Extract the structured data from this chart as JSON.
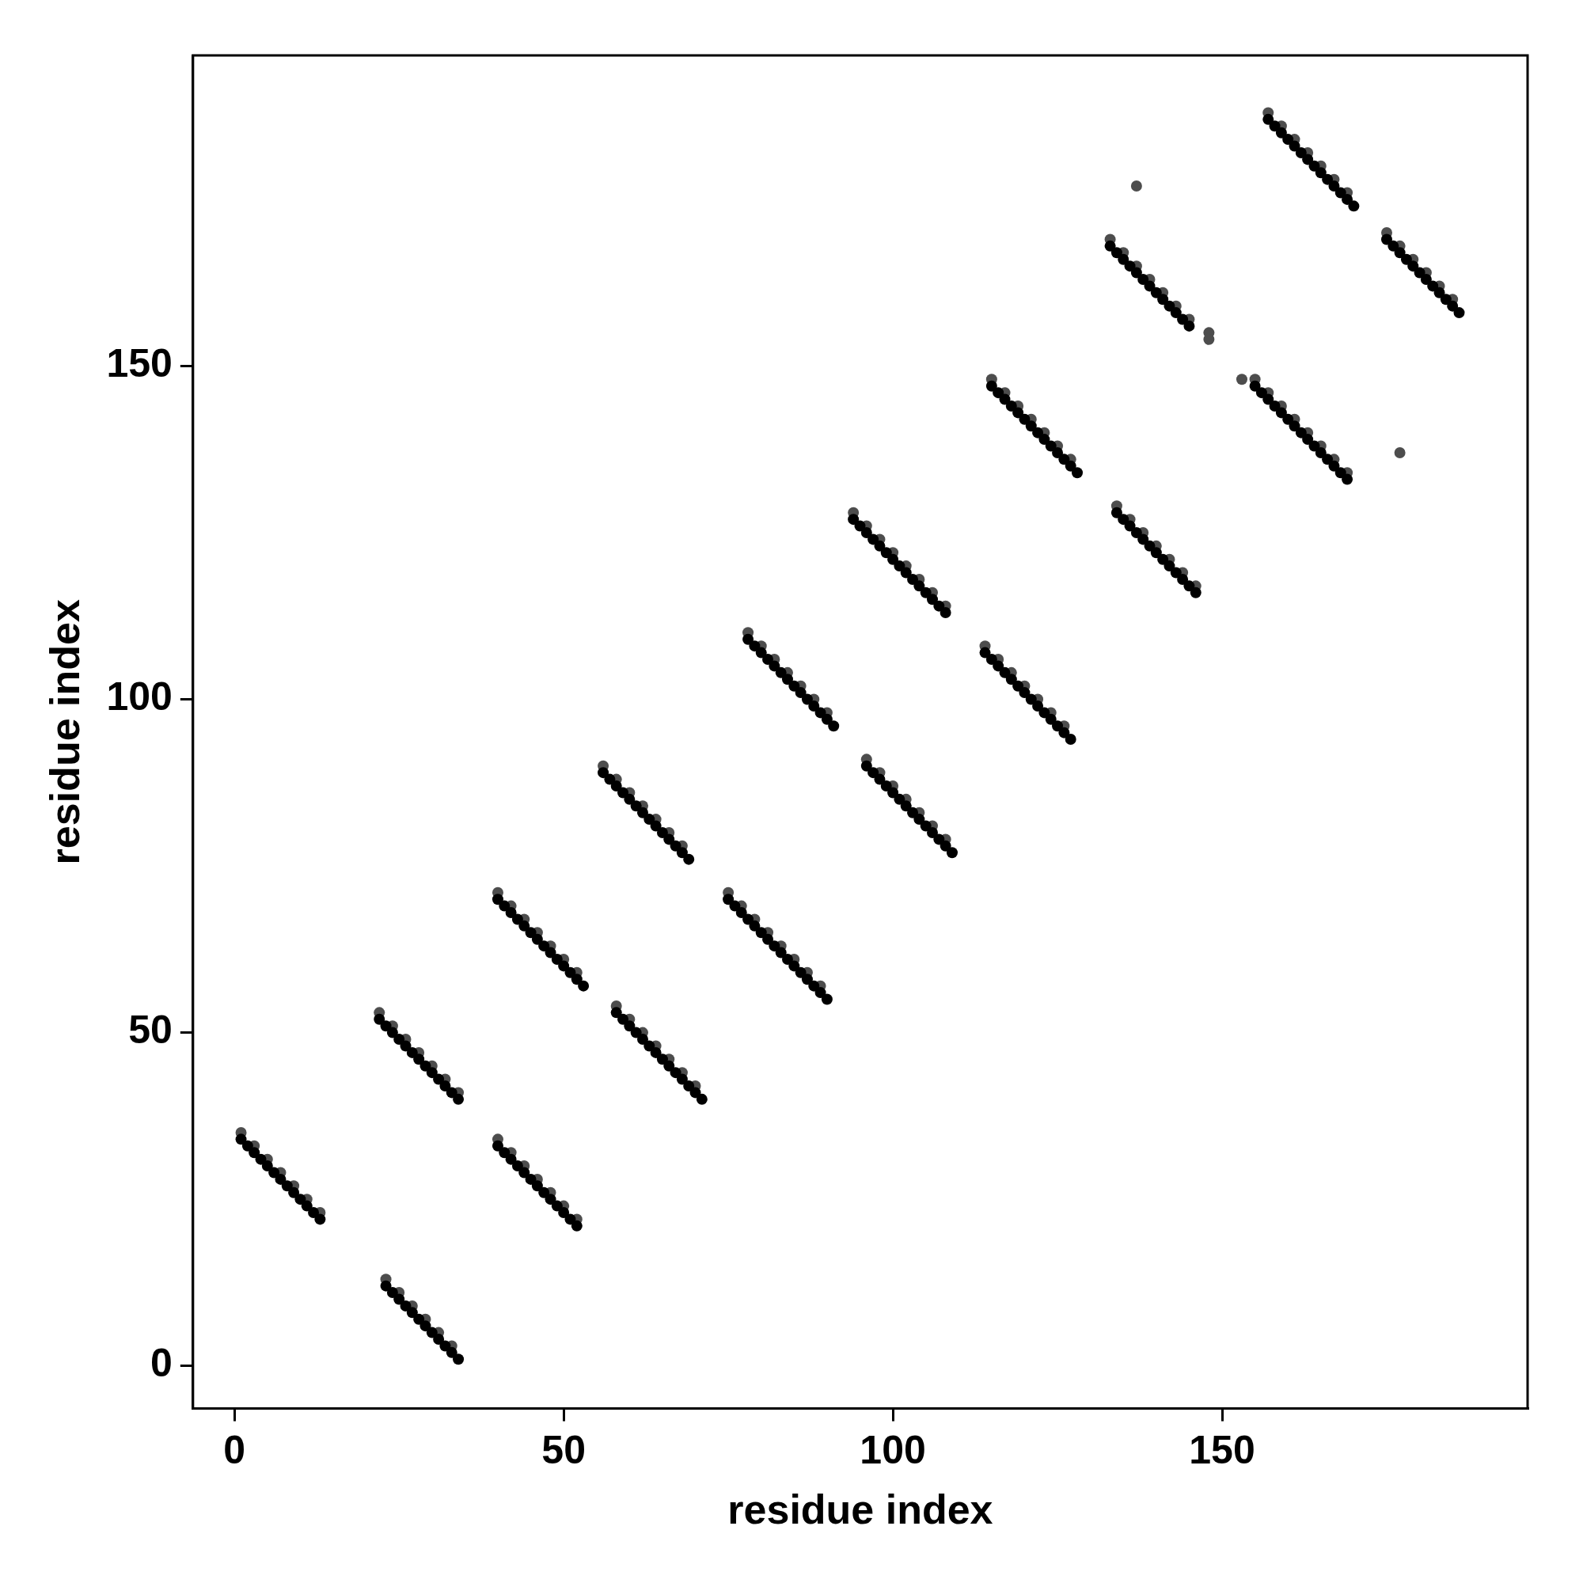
{
  "chart_data": {
    "type": "scatter",
    "xlabel": "residue index",
    "ylabel": "residue index",
    "xlim": [
      -6.3,
      196.4
    ],
    "ylim": [
      -6.4,
      196.6
    ],
    "xticks": [
      0,
      50,
      100,
      150
    ],
    "yticks": [
      0,
      50,
      100,
      150
    ],
    "grid": false,
    "legend": false,
    "marker": "circle",
    "series": [
      {
        "color": "#000000",
        "x": [
          1,
          2,
          3,
          4,
          5,
          6,
          7,
          8,
          9,
          10,
          11,
          12,
          13,
          23,
          24,
          25,
          26,
          27,
          28,
          29,
          30,
          31,
          32,
          33,
          34,
          22,
          23,
          24,
          25,
          26,
          27,
          28,
          29,
          30,
          31,
          32,
          33,
          34,
          40,
          41,
          42,
          43,
          44,
          45,
          46,
          47,
          48,
          49,
          50,
          51,
          52,
          40,
          41,
          42,
          43,
          44,
          45,
          46,
          47,
          48,
          49,
          50,
          51,
          52,
          53,
          56,
          57,
          58,
          59,
          60,
          61,
          62,
          63,
          64,
          65,
          66,
          67,
          68,
          69,
          58,
          59,
          60,
          61,
          62,
          63,
          64,
          65,
          66,
          67,
          68,
          69,
          70,
          71,
          75,
          76,
          77,
          78,
          79,
          80,
          81,
          82,
          83,
          84,
          85,
          86,
          87,
          88,
          89,
          90,
          78,
          79,
          80,
          81,
          82,
          83,
          84,
          85,
          86,
          87,
          88,
          89,
          90,
          91,
          96,
          97,
          98,
          99,
          100,
          101,
          102,
          103,
          104,
          105,
          106,
          107,
          108,
          109,
          94,
          95,
          96,
          97,
          98,
          99,
          100,
          101,
          102,
          103,
          104,
          105,
          106,
          107,
          108,
          114,
          115,
          116,
          117,
          118,
          119,
          120,
          121,
          122,
          123,
          124,
          125,
          126,
          127,
          115,
          116,
          117,
          118,
          119,
          120,
          121,
          122,
          123,
          124,
          125,
          126,
          127,
          128,
          134,
          135,
          136,
          137,
          138,
          139,
          140,
          141,
          142,
          143,
          144,
          145,
          146,
          133,
          134,
          135,
          136,
          137,
          138,
          139,
          140,
          141,
          142,
          143,
          144,
          145,
          155,
          156,
          157,
          158,
          159,
          160,
          161,
          162,
          163,
          164,
          165,
          166,
          167,
          168,
          169,
          157,
          158,
          159,
          160,
          161,
          162,
          163,
          164,
          165,
          166,
          167,
          168,
          169,
          170,
          175,
          176,
          177,
          178,
          179,
          180,
          181,
          182,
          183,
          184,
          185,
          186
        ],
        "values": [
          34,
          33,
          32,
          31,
          30,
          29,
          28,
          27,
          26,
          25,
          24,
          23,
          22,
          12,
          11,
          10,
          9,
          8,
          7,
          6,
          5,
          4,
          3,
          2,
          1,
          52,
          51,
          50,
          49,
          48,
          47,
          46,
          45,
          44,
          43,
          42,
          41,
          40,
          33,
          32,
          31,
          30,
          29,
          28,
          27,
          26,
          25,
          24,
          23,
          22,
          21,
          70,
          69,
          68,
          67,
          66,
          65,
          64,
          63,
          62,
          61,
          60,
          59,
          58,
          57,
          89,
          88,
          87,
          86,
          85,
          84,
          83,
          82,
          81,
          80,
          79,
          78,
          77,
          76,
          53,
          52,
          51,
          50,
          49,
          48,
          47,
          46,
          45,
          44,
          43,
          42,
          41,
          40,
          70,
          69,
          68,
          67,
          66,
          65,
          64,
          63,
          62,
          61,
          60,
          59,
          58,
          57,
          56,
          55,
          109,
          108,
          107,
          106,
          105,
          104,
          103,
          102,
          101,
          100,
          99,
          98,
          97,
          96,
          90,
          89,
          88,
          87,
          86,
          85,
          84,
          83,
          82,
          81,
          80,
          79,
          78,
          77,
          127,
          126,
          125,
          124,
          123,
          122,
          121,
          120,
          119,
          118,
          117,
          116,
          115,
          114,
          113,
          107,
          106,
          105,
          104,
          103,
          102,
          101,
          100,
          99,
          98,
          97,
          96,
          95,
          94,
          147,
          146,
          145,
          144,
          143,
          142,
          141,
          140,
          139,
          138,
          137,
          136,
          135,
          134,
          128,
          127,
          126,
          125,
          124,
          123,
          122,
          121,
          120,
          119,
          118,
          117,
          116,
          168,
          167,
          166,
          165,
          164,
          163,
          162,
          161,
          160,
          159,
          158,
          157,
          156,
          147,
          146,
          145,
          144,
          143,
          142,
          141,
          140,
          139,
          138,
          137,
          136,
          135,
          134,
          133,
          187,
          186,
          185,
          184,
          183,
          182,
          181,
          180,
          179,
          178,
          177,
          176,
          175,
          174,
          169,
          168,
          167,
          166,
          165,
          164,
          163,
          162,
          161,
          160,
          159,
          158
        ]
      },
      {
        "color": "#4d4d4d",
        "x": [
          1,
          3,
          5,
          7,
          9,
          11,
          13,
          23,
          25,
          27,
          29,
          31,
          33,
          22,
          24,
          26,
          28,
          30,
          32,
          34,
          40,
          42,
          44,
          46,
          48,
          50,
          52,
          40,
          42,
          44,
          46,
          48,
          50,
          52,
          56,
          58,
          60,
          62,
          64,
          66,
          68,
          58,
          60,
          62,
          64,
          66,
          68,
          70,
          75,
          77,
          79,
          81,
          83,
          85,
          87,
          89,
          78,
          80,
          82,
          84,
          86,
          88,
          90,
          96,
          98,
          100,
          102,
          104,
          106,
          108,
          94,
          96,
          98,
          100,
          102,
          104,
          106,
          108,
          114,
          116,
          118,
          120,
          122,
          124,
          126,
          115,
          117,
          119,
          121,
          123,
          125,
          127,
          134,
          136,
          138,
          140,
          142,
          144,
          146,
          133,
          135,
          137,
          139,
          141,
          143,
          145,
          155,
          157,
          159,
          161,
          163,
          165,
          167,
          169,
          157,
          159,
          161,
          163,
          165,
          167,
          169,
          175,
          177,
          179,
          181,
          183,
          185,
          137,
          177,
          148,
          148,
          153
        ],
        "values": [
          35,
          33,
          31,
          29,
          27,
          25,
          23,
          13,
          11,
          9,
          7,
          5,
          3,
          53,
          51,
          49,
          47,
          45,
          43,
          41,
          34,
          32,
          30,
          28,
          26,
          24,
          22,
          71,
          69,
          67,
          65,
          63,
          61,
          59,
          90,
          88,
          86,
          84,
          82,
          80,
          78,
          54,
          52,
          50,
          48,
          46,
          44,
          42,
          71,
          69,
          67,
          65,
          63,
          61,
          59,
          57,
          110,
          108,
          106,
          104,
          102,
          100,
          98,
          91,
          89,
          87,
          85,
          83,
          81,
          79,
          128,
          126,
          124,
          122,
          120,
          118,
          116,
          114,
          108,
          106,
          104,
          102,
          100,
          98,
          96,
          148,
          146,
          144,
          142,
          140,
          138,
          136,
          129,
          127,
          125,
          123,
          121,
          119,
          117,
          169,
          167,
          165,
          163,
          161,
          159,
          157,
          148,
          146,
          144,
          142,
          140,
          138,
          136,
          134,
          188,
          186,
          184,
          182,
          180,
          178,
          176,
          170,
          168,
          166,
          164,
          162,
          160,
          177,
          137,
          155,
          154,
          148
        ]
      }
    ]
  }
}
